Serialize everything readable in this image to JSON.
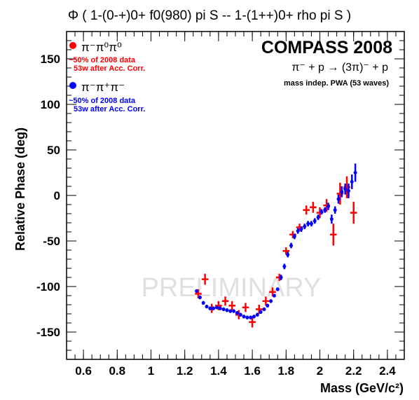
{
  "chart_data": {
    "type": "scatter",
    "title": "Φ ( 1-(0-+)0+ f0(980) pi S  --  1-(1++)0+ rho pi S )",
    "xlabel": "Mass (GeV/c²)",
    "ylabel": "Relative Phase (deg)",
    "xlim": [
      0.5,
      2.5
    ],
    "ylim": [
      -180,
      180
    ],
    "x_ticks": [
      "0.6",
      "0.8",
      "1",
      "1.2",
      "1.4",
      "1.6",
      "1.8",
      "2",
      "2.2",
      "2.4"
    ],
    "y_ticks": [
      "150",
      "100",
      "50",
      "0",
      "-50",
      "-100",
      "-150"
    ],
    "grid": false,
    "legend_placement": "top-left",
    "annotations": {
      "experiment": "COMPASS 2008",
      "reaction": "π⁻ + p  →  (3π)⁻ + p",
      "method": "mass indep. PWA (53 waves)",
      "watermark": "PRELIMINARY"
    },
    "series": [
      {
        "name": "π⁻π⁰π⁰",
        "note_line1": "~50% of 2008 data",
        "note_line2": "53w after Acc. Corr.",
        "color": "#ff0000",
        "x": [
          1.28,
          1.32,
          1.36,
          1.4,
          1.44,
          1.48,
          1.52,
          1.56,
          1.6,
          1.64,
          1.68,
          1.72,
          1.76,
          1.8,
          1.84,
          1.88,
          1.92,
          1.96,
          2.0,
          2.04,
          2.08,
          2.12,
          2.16,
          2.2
        ],
        "y": [
          -108,
          -92,
          -124,
          -121,
          -116,
          -121,
          -131,
          -123,
          -139,
          -125,
          -116,
          -106,
          -90,
          -61,
          -43,
          -35,
          -16,
          -13,
          -19,
          -11,
          -43,
          2,
          9,
          -19
        ],
        "yerr": [
          5,
          6,
          5,
          5,
          5,
          5,
          5,
          5,
          6,
          5,
          5,
          5,
          4,
          4,
          4,
          4,
          5,
          6,
          6,
          7,
          12,
          12,
          12,
          12
        ],
        "xerr": 0.02
      },
      {
        "name": "π⁻π⁺π⁻",
        "note_line1": "~50% of 2008 data",
        "note_line2": "53w after Acc. Corr.",
        "color": "#0000ff",
        "x": [
          1.27,
          1.29,
          1.31,
          1.33,
          1.35,
          1.37,
          1.39,
          1.41,
          1.43,
          1.45,
          1.47,
          1.49,
          1.51,
          1.53,
          1.55,
          1.57,
          1.59,
          1.61,
          1.63,
          1.65,
          1.67,
          1.69,
          1.71,
          1.73,
          1.75,
          1.77,
          1.79,
          1.81,
          1.83,
          1.85,
          1.87,
          1.89,
          1.91,
          1.93,
          1.95,
          1.97,
          1.99,
          2.01,
          2.03,
          2.05,
          2.07,
          2.09,
          2.11,
          2.13,
          2.15,
          2.17,
          2.19,
          2.21
        ],
        "y": [
          -105,
          -112,
          -118,
          -122,
          -124,
          -124,
          -123,
          -124,
          -125,
          -126,
          -127,
          -127,
          -129,
          -131,
          -133,
          -134,
          -134,
          -133,
          -131,
          -128,
          -125,
          -121,
          -116,
          -110,
          -103,
          -90,
          -78,
          -65,
          -55,
          -45,
          -39,
          -37,
          -34,
          -31,
          -31,
          -28,
          -24,
          -18,
          -16,
          -12,
          -26,
          -16,
          -4,
          4,
          7,
          5,
          15,
          25
        ],
        "yerr": [
          2,
          2,
          2,
          2,
          2,
          2,
          2,
          2,
          2,
          2,
          2,
          2,
          2,
          2,
          2,
          2,
          2,
          2,
          2,
          2,
          2,
          2,
          2,
          2,
          2,
          3,
          3,
          3,
          3,
          3,
          3,
          3,
          3,
          3,
          3,
          3,
          3,
          3,
          3,
          4,
          5,
          4,
          5,
          6,
          6,
          8,
          8,
          10
        ],
        "xerr": 0
      }
    ]
  }
}
